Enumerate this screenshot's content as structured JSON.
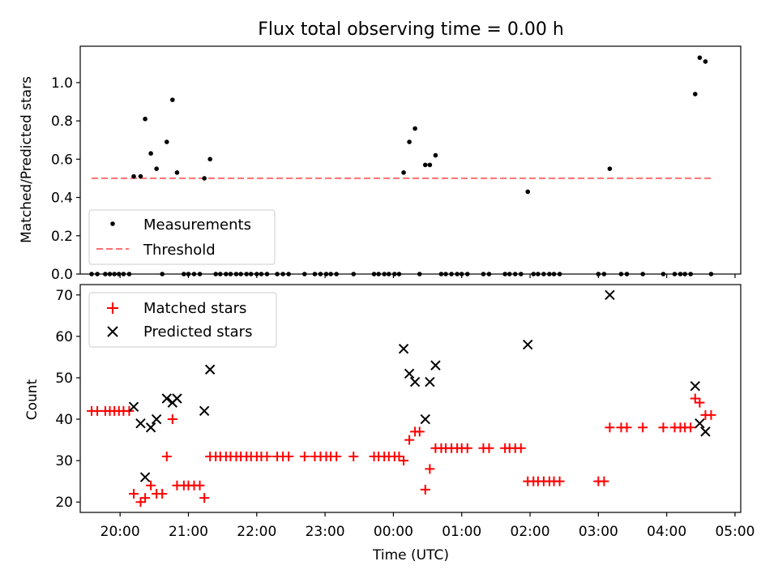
{
  "chart_data": [
    {
      "type": "scatter",
      "title": "Flux total observing time = 0.00 h",
      "xlabel": "",
      "ylabel": "Matched/Predicted stars",
      "xlim": [
        "19:25",
        "05:05"
      ],
      "ylim": [
        0,
        1.19
      ],
      "yticks": [
        0.0,
        0.2,
        0.4,
        0.6,
        0.8,
        1.0
      ],
      "ytick_labels": [
        "0.0",
        "0.2",
        "0.4",
        "0.6",
        "0.8",
        "1.0"
      ],
      "legend_position": "lower-left",
      "grid": false,
      "series": [
        {
          "name": "Measurements",
          "marker": "dot",
          "color": "#000000",
          "points": [
            [
              "19:35",
              0
            ],
            [
              "19:40",
              0
            ],
            [
              "19:47",
              0
            ],
            [
              "19:51",
              0
            ],
            [
              "19:55",
              0
            ],
            [
              "19:59",
              0
            ],
            [
              "20:03",
              0
            ],
            [
              "20:08",
              0
            ],
            [
              "20:12",
              0.51
            ],
            [
              "20:18",
              0.51
            ],
            [
              "20:22",
              0.81
            ],
            [
              "20:27",
              0.63
            ],
            [
              "20:32",
              0.55
            ],
            [
              "20:37",
              0
            ],
            [
              "20:41",
              0.69
            ],
            [
              "20:46",
              0.91
            ],
            [
              "20:50",
              0.53
            ],
            [
              "20:56",
              0
            ],
            [
              "21:00",
              0
            ],
            [
              "21:05",
              0
            ],
            [
              "21:10",
              0
            ],
            [
              "21:14",
              0.5
            ],
            [
              "21:19",
              0.6
            ],
            [
              "21:24",
              0
            ],
            [
              "21:28",
              0
            ],
            [
              "21:33",
              0
            ],
            [
              "21:37",
              0
            ],
            [
              "21:42",
              0
            ],
            [
              "21:46",
              0
            ],
            [
              "21:51",
              0
            ],
            [
              "21:55",
              0
            ],
            [
              "22:00",
              0
            ],
            [
              "22:04",
              0
            ],
            [
              "22:09",
              0
            ],
            [
              "22:18",
              0
            ],
            [
              "22:23",
              0
            ],
            [
              "22:28",
              0
            ],
            [
              "22:42",
              0
            ],
            [
              "22:51",
              0
            ],
            [
              "22:56",
              0
            ],
            [
              "23:01",
              0
            ],
            [
              "23:05",
              0
            ],
            [
              "23:10",
              0
            ],
            [
              "23:25",
              0
            ],
            [
              "23:43",
              0
            ],
            [
              "23:47",
              0
            ],
            [
              "23:52",
              0
            ],
            [
              "23:56",
              0
            ],
            [
              "00:01",
              0
            ],
            [
              "00:05",
              0
            ],
            [
              "00:09",
              0.53
            ],
            [
              "00:14",
              0.69
            ],
            [
              "00:19",
              0.76
            ],
            [
              "00:23",
              0
            ],
            [
              "00:28",
              0.57
            ],
            [
              "00:32",
              0.57
            ],
            [
              "00:37",
              0.62
            ],
            [
              "00:42",
              0
            ],
            [
              "00:46",
              0
            ],
            [
              "00:51",
              0
            ],
            [
              "00:56",
              0
            ],
            [
              "01:00",
              0
            ],
            [
              "01:05",
              0
            ],
            [
              "01:19",
              0
            ],
            [
              "01:24",
              0
            ],
            [
              "01:38",
              0
            ],
            [
              "01:42",
              0
            ],
            [
              "01:47",
              0
            ],
            [
              "01:52",
              0
            ],
            [
              "01:58",
              0.43
            ],
            [
              "02:03",
              0
            ],
            [
              "02:07",
              0
            ],
            [
              "02:12",
              0
            ],
            [
              "02:17",
              0
            ],
            [
              "02:21",
              0
            ],
            [
              "02:26",
              0
            ],
            [
              "03:00",
              0
            ],
            [
              "03:05",
              0
            ],
            [
              "03:10",
              0.55
            ],
            [
              "03:20",
              0
            ],
            [
              "03:25",
              0
            ],
            [
              "03:39",
              0
            ],
            [
              "03:57",
              0
            ],
            [
              "04:07",
              0
            ],
            [
              "04:12",
              0
            ],
            [
              "04:16",
              0
            ],
            [
              "04:21",
              0
            ],
            [
              "04:25",
              0.94
            ],
            [
              "04:29",
              1.13
            ],
            [
              "04:34",
              1.11
            ],
            [
              "04:39",
              0
            ]
          ]
        },
        {
          "name": "Threshold",
          "style": "dashed",
          "color": "#ff7070",
          "x": [
            "19:35",
            "04:39"
          ],
          "y": [
            0.5,
            0.5
          ]
        }
      ]
    },
    {
      "type": "scatter",
      "title": "",
      "xlabel": "Time (UTC)",
      "ylabel": "Count",
      "xlim": [
        "19:25",
        "05:05"
      ],
      "ylim": [
        17.5,
        72.5
      ],
      "xticks": [
        "20:00",
        "21:00",
        "22:00",
        "23:00",
        "00:00",
        "01:00",
        "02:00",
        "03:00",
        "04:00",
        "05:00"
      ],
      "yticks": [
        20,
        30,
        40,
        50,
        60,
        70
      ],
      "ytick_labels": [
        "20",
        "30",
        "40",
        "50",
        "60",
        "70"
      ],
      "legend_position": "upper-left",
      "grid": false,
      "series": [
        {
          "name": "Matched stars",
          "marker": "plus",
          "color": "#ff0000",
          "points": [
            [
              "19:35",
              42
            ],
            [
              "19:40",
              42
            ],
            [
              "19:47",
              42
            ],
            [
              "19:51",
              42
            ],
            [
              "19:55",
              42
            ],
            [
              "19:59",
              42
            ],
            [
              "20:03",
              42
            ],
            [
              "20:08",
              42
            ],
            [
              "20:12",
              22
            ],
            [
              "20:18",
              20
            ],
            [
              "20:22",
              21
            ],
            [
              "20:27",
              24
            ],
            [
              "20:32",
              22
            ],
            [
              "20:37",
              22
            ],
            [
              "20:41",
              31
            ],
            [
              "20:46",
              40
            ],
            [
              "20:50",
              24
            ],
            [
              "20:56",
              24
            ],
            [
              "21:00",
              24
            ],
            [
              "21:05",
              24
            ],
            [
              "21:10",
              24
            ],
            [
              "21:14",
              21
            ],
            [
              "21:19",
              31
            ],
            [
              "21:24",
              31
            ],
            [
              "21:28",
              31
            ],
            [
              "21:33",
              31
            ],
            [
              "21:37",
              31
            ],
            [
              "21:42",
              31
            ],
            [
              "21:46",
              31
            ],
            [
              "21:51",
              31
            ],
            [
              "21:55",
              31
            ],
            [
              "22:00",
              31
            ],
            [
              "22:04",
              31
            ],
            [
              "22:09",
              31
            ],
            [
              "22:18",
              31
            ],
            [
              "22:23",
              31
            ],
            [
              "22:28",
              31
            ],
            [
              "22:42",
              31
            ],
            [
              "22:51",
              31
            ],
            [
              "22:56",
              31
            ],
            [
              "23:01",
              31
            ],
            [
              "23:05",
              31
            ],
            [
              "23:10",
              31
            ],
            [
              "23:25",
              31
            ],
            [
              "23:43",
              31
            ],
            [
              "23:47",
              31
            ],
            [
              "23:52",
              31
            ],
            [
              "23:56",
              31
            ],
            [
              "00:01",
              31
            ],
            [
              "00:05",
              31
            ],
            [
              "00:09",
              30
            ],
            [
              "00:14",
              35
            ],
            [
              "00:19",
              37
            ],
            [
              "00:23",
              37
            ],
            [
              "00:28",
              23
            ],
            [
              "00:32",
              28
            ],
            [
              "00:37",
              33
            ],
            [
              "00:42",
              33
            ],
            [
              "00:46",
              33
            ],
            [
              "00:51",
              33
            ],
            [
              "00:56",
              33
            ],
            [
              "01:00",
              33
            ],
            [
              "01:05",
              33
            ],
            [
              "01:19",
              33
            ],
            [
              "01:24",
              33
            ],
            [
              "01:38",
              33
            ],
            [
              "01:42",
              33
            ],
            [
              "01:47",
              33
            ],
            [
              "01:52",
              33
            ],
            [
              "01:58",
              25
            ],
            [
              "02:03",
              25
            ],
            [
              "02:07",
              25
            ],
            [
              "02:12",
              25
            ],
            [
              "02:17",
              25
            ],
            [
              "02:21",
              25
            ],
            [
              "02:26",
              25
            ],
            [
              "03:00",
              25
            ],
            [
              "03:05",
              25
            ],
            [
              "03:10",
              38
            ],
            [
              "03:20",
              38
            ],
            [
              "03:25",
              38
            ],
            [
              "03:39",
              38
            ],
            [
              "03:57",
              38
            ],
            [
              "04:07",
              38
            ],
            [
              "04:12",
              38
            ],
            [
              "04:16",
              38
            ],
            [
              "04:21",
              38
            ],
            [
              "04:25",
              45
            ],
            [
              "04:29",
              44
            ],
            [
              "04:34",
              41
            ],
            [
              "04:39",
              41
            ]
          ]
        },
        {
          "name": "Predicted stars",
          "marker": "x",
          "color": "#000000",
          "points": [
            [
              "20:12",
              43
            ],
            [
              "20:18",
              39
            ],
            [
              "20:22",
              26
            ],
            [
              "20:27",
              38
            ],
            [
              "20:32",
              40
            ],
            [
              "20:41",
              45
            ],
            [
              "20:46",
              44
            ],
            [
              "20:50",
              45
            ],
            [
              "21:14",
              42
            ],
            [
              "21:19",
              52
            ],
            [
              "00:09",
              57
            ],
            [
              "00:14",
              51
            ],
            [
              "00:19",
              49
            ],
            [
              "00:28",
              40
            ],
            [
              "00:32",
              49
            ],
            [
              "00:37",
              53
            ],
            [
              "01:58",
              58
            ],
            [
              "03:10",
              70
            ],
            [
              "04:25",
              48
            ],
            [
              "04:29",
              39
            ],
            [
              "04:34",
              37
            ]
          ]
        }
      ]
    }
  ]
}
